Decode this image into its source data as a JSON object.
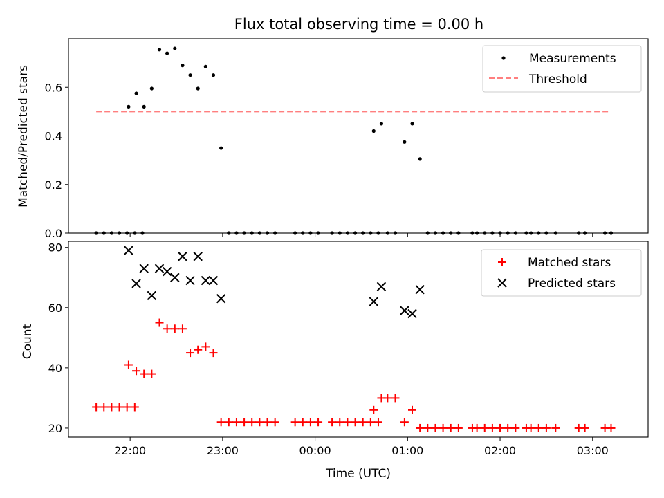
{
  "chart_data": [
    {
      "type": "scatter",
      "title": "Flux total observing time = 0.00 h",
      "ylabel": "Matched/Predicted stars",
      "xlabel": "",
      "xlim": [
        "21:20",
        "03:36"
      ],
      "ylim": [
        0,
        0.8
      ],
      "yticks": [
        0.0,
        0.2,
        0.4,
        0.6
      ],
      "ytick_labels": [
        "0.0",
        "0.2",
        "0.4",
        "0.6"
      ],
      "grid": false,
      "legend_position": "top-right",
      "series": [
        {
          "name": "Measurements",
          "marker": "dot",
          "color": "#000000",
          "points": [
            {
              "x": "21:38",
              "y": 0.0
            },
            {
              "x": "21:43",
              "y": 0.0
            },
            {
              "x": "21:48",
              "y": 0.0
            },
            {
              "x": "21:53",
              "y": 0.0
            },
            {
              "x": "21:58",
              "y": 0.0
            },
            {
              "x": "22:03",
              "y": 0.0
            },
            {
              "x": "22:08",
              "y": 0.0
            },
            {
              "x": "21:59",
              "y": 0.52
            },
            {
              "x": "22:04",
              "y": 0.575
            },
            {
              "x": "22:09",
              "y": 0.52
            },
            {
              "x": "22:14",
              "y": 0.595
            },
            {
              "x": "22:19",
              "y": 0.755
            },
            {
              "x": "22:24",
              "y": 0.74
            },
            {
              "x": "22:29",
              "y": 0.76
            },
            {
              "x": "22:34",
              "y": 0.69
            },
            {
              "x": "22:39",
              "y": 0.65
            },
            {
              "x": "22:44",
              "y": 0.595
            },
            {
              "x": "22:49",
              "y": 0.685
            },
            {
              "x": "22:54",
              "y": 0.65
            },
            {
              "x": "22:59",
              "y": 0.35
            },
            {
              "x": "23:04",
              "y": 0.0
            },
            {
              "x": "23:09",
              "y": 0.0
            },
            {
              "x": "23:14",
              "y": 0.0
            },
            {
              "x": "23:19",
              "y": 0.0
            },
            {
              "x": "23:24",
              "y": 0.0
            },
            {
              "x": "23:29",
              "y": 0.0
            },
            {
              "x": "23:34",
              "y": 0.0
            },
            {
              "x": "23:47",
              "y": 0.0
            },
            {
              "x": "23:52",
              "y": 0.0
            },
            {
              "x": "23:57",
              "y": 0.0
            },
            {
              "x": "00:02",
              "y": 0.0
            },
            {
              "x": "00:11",
              "y": 0.0
            },
            {
              "x": "00:16",
              "y": 0.0
            },
            {
              "x": "00:21",
              "y": 0.0
            },
            {
              "x": "00:26",
              "y": 0.0
            },
            {
              "x": "00:31",
              "y": 0.0
            },
            {
              "x": "00:36",
              "y": 0.0
            },
            {
              "x": "00:41",
              "y": 0.0
            },
            {
              "x": "00:38",
              "y": 0.42
            },
            {
              "x": "00:43",
              "y": 0.45
            },
            {
              "x": "00:47",
              "y": 0.0
            },
            {
              "x": "00:52",
              "y": 0.0
            },
            {
              "x": "00:58",
              "y": 0.375
            },
            {
              "x": "01:03",
              "y": 0.45
            },
            {
              "x": "01:08",
              "y": 0.305
            },
            {
              "x": "01:13",
              "y": 0.0
            },
            {
              "x": "01:18",
              "y": 0.0
            },
            {
              "x": "01:23",
              "y": 0.0
            },
            {
              "x": "01:28",
              "y": 0.0
            },
            {
              "x": "01:33",
              "y": 0.0
            },
            {
              "x": "01:42",
              "y": 0.0
            },
            {
              "x": "01:45",
              "y": 0.0
            },
            {
              "x": "01:50",
              "y": 0.0
            },
            {
              "x": "01:55",
              "y": 0.0
            },
            {
              "x": "02:00",
              "y": 0.0
            },
            {
              "x": "02:05",
              "y": 0.0
            },
            {
              "x": "02:10",
              "y": 0.0
            },
            {
              "x": "02:17",
              "y": 0.0
            },
            {
              "x": "02:20",
              "y": 0.0
            },
            {
              "x": "02:25",
              "y": 0.0
            },
            {
              "x": "02:30",
              "y": 0.0
            },
            {
              "x": "02:36",
              "y": 0.0
            },
            {
              "x": "02:51",
              "y": 0.0
            },
            {
              "x": "02:55",
              "y": 0.0
            },
            {
              "x": "03:08",
              "y": 0.0
            },
            {
              "x": "03:12",
              "y": 0.0
            }
          ]
        },
        {
          "name": "Threshold",
          "type": "line",
          "style": "dashed",
          "color": "#ff7f7f",
          "points": [
            {
              "x": "21:38",
              "y": 0.5
            },
            {
              "x": "03:12",
              "y": 0.5
            }
          ]
        }
      ]
    },
    {
      "type": "scatter",
      "title": "",
      "ylabel": "Count",
      "xlabel": "Time (UTC)",
      "xlim": [
        "21:20",
        "03:36"
      ],
      "ylim": [
        17,
        82
      ],
      "yticks": [
        20,
        40,
        60,
        80
      ],
      "ytick_labels": [
        "20",
        "40",
        "60",
        "80"
      ],
      "xticks": [
        "22:00",
        "23:00",
        "00:00",
        "01:00",
        "02:00",
        "03:00"
      ],
      "xtick_labels": [
        "22:00",
        "23:00",
        "00:00",
        "01:00",
        "02:00",
        "03:00"
      ],
      "grid": false,
      "legend_position": "top-right",
      "series": [
        {
          "name": "Matched stars",
          "marker": "plus",
          "color": "#ff0000",
          "points": [
            {
              "x": "21:38",
              "y": 27
            },
            {
              "x": "21:43",
              "y": 27
            },
            {
              "x": "21:48",
              "y": 27
            },
            {
              "x": "21:53",
              "y": 27
            },
            {
              "x": "21:58",
              "y": 27
            },
            {
              "x": "22:03",
              "y": 27
            },
            {
              "x": "21:59",
              "y": 41
            },
            {
              "x": "22:04",
              "y": 39
            },
            {
              "x": "22:09",
              "y": 38
            },
            {
              "x": "22:14",
              "y": 38
            },
            {
              "x": "22:19",
              "y": 55
            },
            {
              "x": "22:24",
              "y": 53
            },
            {
              "x": "22:29",
              "y": 53
            },
            {
              "x": "22:34",
              "y": 53
            },
            {
              "x": "22:39",
              "y": 45
            },
            {
              "x": "22:44",
              "y": 46
            },
            {
              "x": "22:49",
              "y": 47
            },
            {
              "x": "22:54",
              "y": 45
            },
            {
              "x": "22:59",
              "y": 22
            },
            {
              "x": "23:04",
              "y": 22
            },
            {
              "x": "23:09",
              "y": 22
            },
            {
              "x": "23:14",
              "y": 22
            },
            {
              "x": "23:19",
              "y": 22
            },
            {
              "x": "23:24",
              "y": 22
            },
            {
              "x": "23:29",
              "y": 22
            },
            {
              "x": "23:34",
              "y": 22
            },
            {
              "x": "23:47",
              "y": 22
            },
            {
              "x": "23:52",
              "y": 22
            },
            {
              "x": "23:57",
              "y": 22
            },
            {
              "x": "00:02",
              "y": 22
            },
            {
              "x": "00:11",
              "y": 22
            },
            {
              "x": "00:16",
              "y": 22
            },
            {
              "x": "00:21",
              "y": 22
            },
            {
              "x": "00:26",
              "y": 22
            },
            {
              "x": "00:31",
              "y": 22
            },
            {
              "x": "00:36",
              "y": 22
            },
            {
              "x": "00:41",
              "y": 22
            },
            {
              "x": "00:38",
              "y": 26
            },
            {
              "x": "00:43",
              "y": 30
            },
            {
              "x": "00:47",
              "y": 30
            },
            {
              "x": "00:52",
              "y": 30
            },
            {
              "x": "00:58",
              "y": 22
            },
            {
              "x": "01:03",
              "y": 26
            },
            {
              "x": "01:08",
              "y": 20
            },
            {
              "x": "01:13",
              "y": 20
            },
            {
              "x": "01:18",
              "y": 20
            },
            {
              "x": "01:23",
              "y": 20
            },
            {
              "x": "01:28",
              "y": 20
            },
            {
              "x": "01:33",
              "y": 20
            },
            {
              "x": "01:42",
              "y": 20
            },
            {
              "x": "01:45",
              "y": 20
            },
            {
              "x": "01:50",
              "y": 20
            },
            {
              "x": "01:55",
              "y": 20
            },
            {
              "x": "02:00",
              "y": 20
            },
            {
              "x": "02:05",
              "y": 20
            },
            {
              "x": "02:10",
              "y": 20
            },
            {
              "x": "02:17",
              "y": 20
            },
            {
              "x": "02:20",
              "y": 20
            },
            {
              "x": "02:25",
              "y": 20
            },
            {
              "x": "02:30",
              "y": 20
            },
            {
              "x": "02:36",
              "y": 20
            },
            {
              "x": "02:51",
              "y": 20
            },
            {
              "x": "02:55",
              "y": 20
            },
            {
              "x": "03:08",
              "y": 20
            },
            {
              "x": "03:12",
              "y": 20
            }
          ]
        },
        {
          "name": "Predicted stars",
          "marker": "x",
          "color": "#000000",
          "points": [
            {
              "x": "21:59",
              "y": 79
            },
            {
              "x": "22:04",
              "y": 68
            },
            {
              "x": "22:09",
              "y": 73
            },
            {
              "x": "22:14",
              "y": 64
            },
            {
              "x": "22:19",
              "y": 73
            },
            {
              "x": "22:24",
              "y": 72
            },
            {
              "x": "22:29",
              "y": 70
            },
            {
              "x": "22:34",
              "y": 77
            },
            {
              "x": "22:39",
              "y": 69
            },
            {
              "x": "22:44",
              "y": 77
            },
            {
              "x": "22:49",
              "y": 69
            },
            {
              "x": "22:54",
              "y": 69
            },
            {
              "x": "22:59",
              "y": 63
            },
            {
              "x": "00:38",
              "y": 62
            },
            {
              "x": "00:43",
              "y": 67
            },
            {
              "x": "00:58",
              "y": 59
            },
            {
              "x": "01:03",
              "y": 58
            },
            {
              "x": "01:08",
              "y": 66
            }
          ]
        }
      ]
    }
  ]
}
